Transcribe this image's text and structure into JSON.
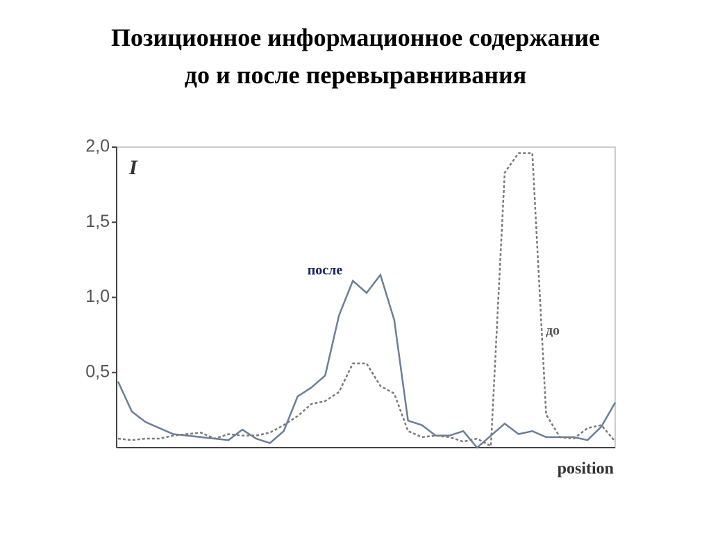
{
  "chart_data": {
    "type": "line",
    "title": [
      "Позиционное информационное содержание",
      "до и после перевыравнивания"
    ],
    "y_label": "I",
    "x_label": "position",
    "x": [
      1,
      2,
      3,
      4,
      5,
      6,
      7,
      8,
      9,
      10,
      11,
      12,
      13,
      14,
      15,
      16,
      17,
      18,
      19,
      20,
      21,
      22,
      23,
      24,
      25,
      26,
      27,
      28,
      29,
      30,
      31,
      32,
      33,
      34,
      35,
      36,
      37
    ],
    "xlim": [
      1,
      37
    ],
    "ylim": [
      0,
      2
    ],
    "yticks": [
      {
        "value": 0.5,
        "label": "0,5"
      },
      {
        "value": 1,
        "label": "1,0"
      },
      {
        "value": 1.5,
        "label": "1,5"
      },
      {
        "value": 2,
        "label": "2,0"
      }
    ],
    "series": [
      {
        "name": "после",
        "color": "#6a7e99",
        "dashed": false,
        "values": [
          0.44,
          0.24,
          0.17,
          0.13,
          0.09,
          0.08,
          0.07,
          0.06,
          0.05,
          0.12,
          0.06,
          0.03,
          0.11,
          0.34,
          0.4,
          0.48,
          0.88,
          1.11,
          1.03,
          1.15,
          0.85,
          0.18,
          0.15,
          0.08,
          0.08,
          0.11,
          0.0,
          0.08,
          0.16,
          0.09,
          0.11,
          0.07,
          0.07,
          0.07,
          0.05,
          0.14,
          0.3
        ]
      },
      {
        "name": "до",
        "color": "#7a7a7a",
        "dashed": true,
        "values": [
          0.06,
          0.05,
          0.06,
          0.06,
          0.08,
          0.09,
          0.1,
          0.06,
          0.09,
          0.08,
          0.08,
          0.1,
          0.15,
          0.21,
          0.29,
          0.31,
          0.37,
          0.56,
          0.56,
          0.41,
          0.36,
          0.11,
          0.07,
          0.08,
          0.07,
          0.04,
          0.06,
          0.01,
          1.83,
          1.96,
          1.96,
          0.22,
          0.07,
          0.06,
          0.13,
          0.15,
          0.04
        ]
      }
    ]
  }
}
